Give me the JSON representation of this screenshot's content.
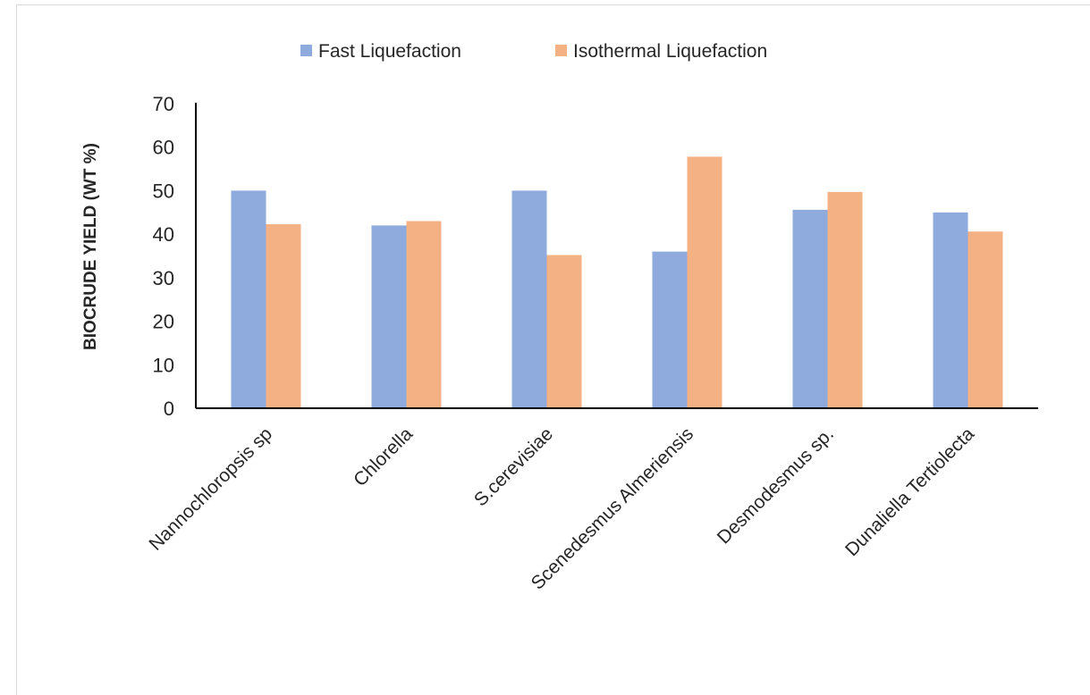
{
  "chart_data": {
    "type": "bar",
    "title": "",
    "xlabel": "",
    "ylabel": "BIOCRUDE YIELD (WT %)",
    "ylim": [
      0,
      70
    ],
    "yticks": [
      0,
      10,
      20,
      30,
      40,
      50,
      60,
      70
    ],
    "grid": false,
    "legend_position": "top",
    "categories": [
      "Nannochloropsis sp",
      "Chlorella",
      "S.cerevisiae",
      "Scenedesmus Almeriensis",
      "Desmodesmus sp.",
      "Dunaliella Tertiolecta"
    ],
    "series": [
      {
        "name": "Fast Liquefaction",
        "color": "#8faadc",
        "values": [
          50,
          42,
          50,
          36,
          45.6,
          45
        ]
      },
      {
        "name": "Isothermal Liquefaction",
        "color": "#f4b183",
        "values": [
          42.3,
          43,
          35.2,
          57.8,
          49.7,
          40.6
        ]
      }
    ]
  }
}
